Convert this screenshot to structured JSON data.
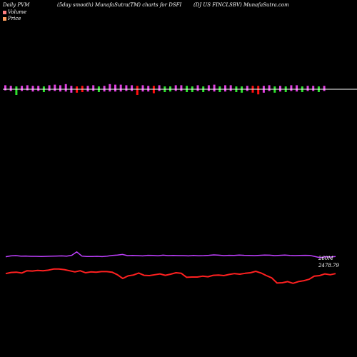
{
  "header": {
    "left": "Daily PVM",
    "center": "(5day smooth) MunafaSutra(TM) charts for DSFI",
    "right": "(DJ US FINCLSBV) MunafaSutra.com"
  },
  "legend": [
    {
      "label": "Volume",
      "color": "#ff8080"
    },
    {
      "label": "Price",
      "color": "#ffa060"
    }
  ],
  "colors": {
    "background": "#000000",
    "up": "#e040e0",
    "down_red": "#ff1010",
    "down_green": "#30e030",
    "volume_line": "#c040ff",
    "price_line": "#ff2020",
    "baseline": "#ffffff"
  },
  "chart_data": {
    "type": "line",
    "title": "",
    "xlabel": "",
    "ylabel": "",
    "last_values": {
      "volume_label": "260M",
      "price_label": "2478.79"
    },
    "pvm_bars": [
      {
        "color": "up",
        "above": 0.7,
        "below": 0.2
      },
      {
        "color": "up",
        "above": 0.6,
        "below": 0.3
      },
      {
        "color": "down_green",
        "above": 0.5,
        "below": 1.0
      },
      {
        "color": "up",
        "above": 0.6,
        "below": 0.3
      },
      {
        "color": "up",
        "above": 0.7,
        "below": 0.2
      },
      {
        "color": "up",
        "above": 0.6,
        "below": 0.4
      },
      {
        "color": "up",
        "above": 0.6,
        "below": 0.3
      },
      {
        "color": "down_green",
        "above": 0.5,
        "below": 0.5
      },
      {
        "color": "up",
        "above": 0.7,
        "below": 0.3
      },
      {
        "color": "up",
        "above": 0.8,
        "below": 0.3
      },
      {
        "color": "up",
        "above": 0.7,
        "below": 0.4
      },
      {
        "color": "up",
        "above": 0.9,
        "below": 0.4
      },
      {
        "color": "up",
        "above": 0.6,
        "below": 0.6
      },
      {
        "color": "down_red",
        "above": 0.5,
        "below": 0.6
      },
      {
        "color": "down_red",
        "above": 0.6,
        "below": 0.5
      },
      {
        "color": "up",
        "above": 0.6,
        "below": 0.4
      },
      {
        "color": "up",
        "above": 0.7,
        "below": 0.3
      },
      {
        "color": "down_green",
        "above": 0.5,
        "below": 0.5
      },
      {
        "color": "up",
        "above": 0.6,
        "below": 0.4
      },
      {
        "color": "up",
        "above": 0.9,
        "below": 0.4
      },
      {
        "color": "up",
        "above": 0.8,
        "below": 0.4
      },
      {
        "color": "up",
        "above": 0.8,
        "below": 0.4
      },
      {
        "color": "up",
        "above": 0.7,
        "below": 0.3
      },
      {
        "color": "up",
        "above": 0.7,
        "below": 0.3
      },
      {
        "color": "down_red",
        "above": 0.6,
        "below": 1.0
      },
      {
        "color": "up",
        "above": 0.7,
        "below": 0.4
      },
      {
        "color": "up",
        "above": 0.6,
        "below": 0.4
      },
      {
        "color": "down_red",
        "above": 0.6,
        "below": 0.7
      },
      {
        "color": "up",
        "above": 0.7,
        "below": 0.3
      },
      {
        "color": "down_green",
        "above": 0.5,
        "below": 0.5
      },
      {
        "color": "down_green",
        "above": 0.5,
        "below": 0.4
      },
      {
        "color": "up",
        "above": 0.7,
        "below": 0.3
      },
      {
        "color": "up",
        "above": 0.7,
        "below": 0.3
      },
      {
        "color": "down_green",
        "above": 0.6,
        "below": 0.5
      },
      {
        "color": "down_green",
        "above": 0.5,
        "below": 0.5
      },
      {
        "color": "up",
        "above": 0.7,
        "below": 0.3
      },
      {
        "color": "down_green",
        "above": 0.5,
        "below": 0.5
      },
      {
        "color": "up",
        "above": 0.7,
        "below": 0.3
      },
      {
        "color": "up",
        "above": 0.8,
        "below": 0.4
      },
      {
        "color": "down_green",
        "above": 0.5,
        "below": 0.5
      },
      {
        "color": "up",
        "above": 0.7,
        "below": 0.4
      },
      {
        "color": "up",
        "above": 0.7,
        "below": 0.3
      },
      {
        "color": "down_green",
        "above": 0.5,
        "below": 0.5
      },
      {
        "color": "down_green",
        "above": 0.5,
        "below": 0.6
      },
      {
        "color": "up",
        "above": 0.6,
        "below": 0.3
      },
      {
        "color": "down_red",
        "above": 0.6,
        "below": 0.6
      },
      {
        "color": "down_red",
        "above": 0.6,
        "below": 0.9
      },
      {
        "color": "up",
        "above": 0.6,
        "below": 0.6
      },
      {
        "color": "up",
        "above": 0.7,
        "below": 0.3
      },
      {
        "color": "down_green",
        "above": 0.5,
        "below": 0.6
      },
      {
        "color": "up",
        "above": 0.6,
        "below": 0.4
      },
      {
        "color": "down_green",
        "above": 0.5,
        "below": 0.5
      },
      {
        "color": "up",
        "above": 0.7,
        "below": 0.3
      },
      {
        "color": "up",
        "above": 0.7,
        "below": 0.4
      },
      {
        "color": "down_green",
        "above": 0.5,
        "below": 0.5
      },
      {
        "color": "up",
        "above": 0.6,
        "below": 0.3
      },
      {
        "color": "up",
        "above": 0.6,
        "below": 0.3
      },
      {
        "color": "down_green",
        "above": 0.5,
        "below": 0.5
      },
      {
        "color": "up",
        "above": 0.6,
        "below": 0.3
      }
    ],
    "series": [
      {
        "values": [
          0.62,
          0.68,
          0.7,
          0.66,
          0.67,
          0.65,
          0.65,
          0.64,
          0.65,
          0.66,
          0.67,
          0.68,
          0.66,
          0.72,
          0.96,
          0.67,
          0.64,
          0.64,
          0.65,
          0.63,
          0.66,
          0.71,
          0.74,
          0.78,
          0.7,
          0.71,
          0.7,
          0.68,
          0.72,
          0.71,
          0.69,
          0.73,
          0.7,
          0.71,
          0.7,
          0.7,
          0.68,
          0.71,
          0.69,
          0.7,
          0.72,
          0.75,
          0.73,
          0.7,
          0.72,
          0.71,
          0.74,
          0.72,
          0.71,
          0.7,
          0.72,
          0.74,
          0.73,
          0.7,
          0.72,
          0.74,
          0.71,
          0.7,
          0.71,
          0.72,
          0.71,
          0.63,
          0.55,
          0.62,
          0.6,
          0.64
        ]
      },
      {
        "values": [
          0.42,
          0.46,
          0.47,
          0.44,
          0.52,
          0.51,
          0.53,
          0.52,
          0.54,
          0.58,
          0.58,
          0.56,
          0.52,
          0.48,
          0.52,
          0.45,
          0.48,
          0.47,
          0.49,
          0.49,
          0.47,
          0.38,
          0.25,
          0.34,
          0.37,
          0.44,
          0.36,
          0.35,
          0.38,
          0.41,
          0.36,
          0.4,
          0.45,
          0.43,
          0.29,
          0.3,
          0.3,
          0.33,
          0.31,
          0.36,
          0.37,
          0.35,
          0.39,
          0.42,
          0.4,
          0.43,
          0.45,
          0.5,
          0.44,
          0.35,
          0.27,
          0.09,
          0.1,
          0.14,
          0.08,
          0.14,
          0.17,
          0.22,
          0.33,
          0.35,
          0.41,
          0.38,
          0.42
        ]
      }
    ]
  }
}
